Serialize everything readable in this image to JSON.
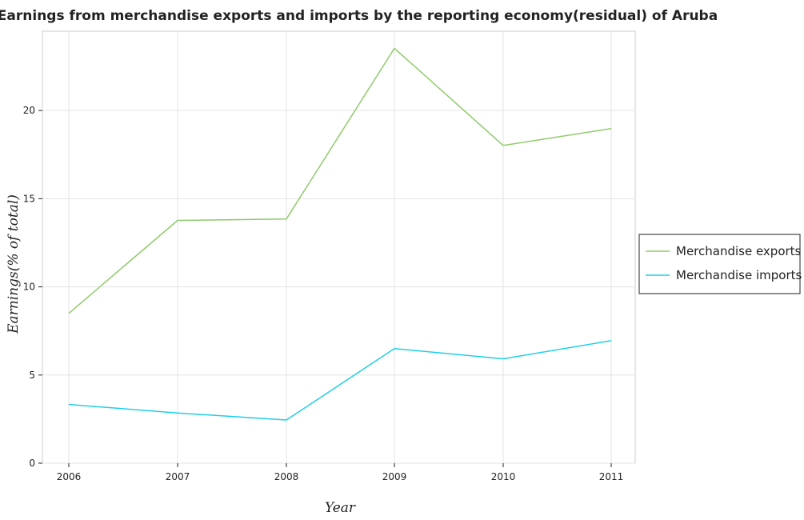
{
  "chart_data": {
    "type": "line",
    "title": "Earnings from merchandise exports and imports by the reporting economy(residual) of Aruba",
    "xlabel": "Year",
    "ylabel": "Earnings(% of total)",
    "categories": [
      "2006",
      "2007",
      "2008",
      "2009",
      "2010",
      "2011"
    ],
    "ylim": [
      0,
      24.5
    ],
    "yticks": [
      "0",
      "5",
      "10",
      "15",
      "20"
    ],
    "grid": true,
    "legend_position": "right",
    "series": [
      {
        "name": "Merchandise exports",
        "color": "#8fca6a",
        "values": [
          8.5,
          13.77,
          13.85,
          23.53,
          18.02,
          18.98
        ]
      },
      {
        "name": "Merchandise imports",
        "color": "#1ecfe8",
        "values": [
          3.33,
          2.85,
          2.45,
          6.5,
          5.92,
          6.95
        ]
      }
    ]
  }
}
